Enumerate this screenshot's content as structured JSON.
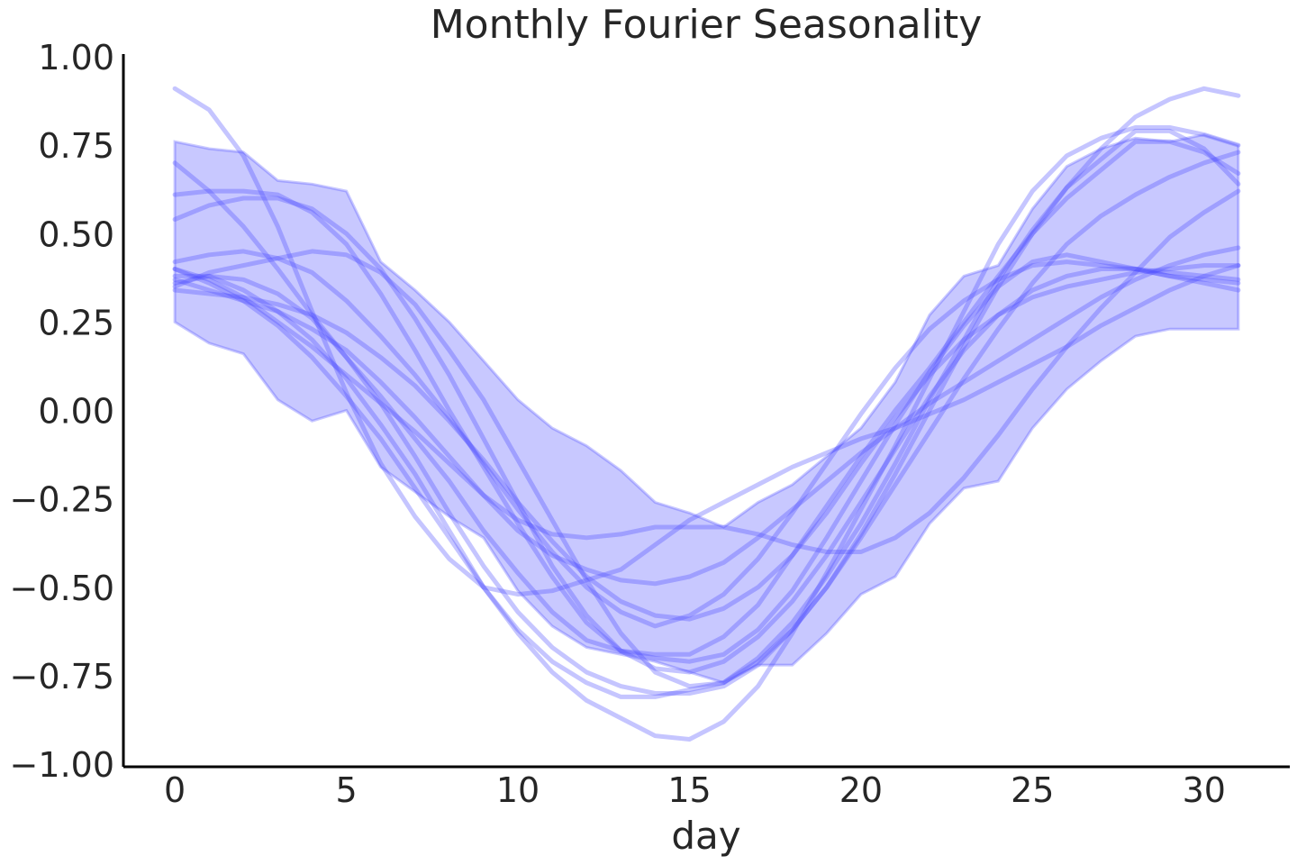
{
  "chart_data": {
    "type": "line",
    "title": "Monthly Fourier Seasonality",
    "xlabel": "day",
    "ylabel": "",
    "xlim": [
      -1.5,
      32.5
    ],
    "ylim": [
      -1.0,
      1.0
    ],
    "xticks": [
      0,
      5,
      10,
      15,
      20,
      25,
      30
    ],
    "yticks": [
      1.0,
      0.75,
      0.5,
      0.25,
      0.0,
      -0.25,
      -0.5,
      -0.75,
      -1.0
    ],
    "xtick_labels": [
      "0",
      "5",
      "10",
      "15",
      "20",
      "25",
      "30"
    ],
    "ytick_labels": [
      "1.00",
      "0.75",
      "0.50",
      "0.25",
      "0.00",
      "−0.25",
      "−0.50",
      "−0.75",
      "−1.00"
    ],
    "grid": false,
    "legend": "none",
    "color": "#4a4aff",
    "x": [
      0,
      1,
      2,
      3,
      4,
      5,
      6,
      7,
      8,
      9,
      10,
      11,
      12,
      13,
      14,
      15,
      16,
      17,
      18,
      19,
      20,
      21,
      22,
      23,
      24,
      25,
      26,
      27,
      28,
      29,
      30,
      31
    ],
    "band": {
      "upper": [
        0.76,
        0.74,
        0.73,
        0.65,
        0.64,
        0.62,
        0.42,
        0.34,
        0.25,
        0.14,
        0.03,
        -0.05,
        -0.1,
        -0.17,
        -0.26,
        -0.29,
        -0.33,
        -0.26,
        -0.21,
        -0.13,
        -0.05,
        0.08,
        0.27,
        0.38,
        0.41,
        0.57,
        0.69,
        0.74,
        0.77,
        0.76,
        0.78,
        0.75
      ],
      "lower": [
        0.25,
        0.19,
        0.16,
        0.03,
        -0.03,
        0.0,
        -0.16,
        -0.23,
        -0.3,
        -0.36,
        -0.51,
        -0.61,
        -0.67,
        -0.69,
        -0.71,
        -0.74,
        -0.77,
        -0.72,
        -0.72,
        -0.63,
        -0.52,
        -0.47,
        -0.32,
        -0.22,
        -0.2,
        -0.05,
        0.06,
        0.14,
        0.21,
        0.23,
        0.23,
        0.23
      ]
    },
    "series": [
      {
        "values": [
          0.91,
          0.85,
          0.72,
          0.52,
          0.28,
          0.05,
          -0.15,
          -0.3,
          -0.42,
          -0.5,
          -0.52,
          -0.51,
          -0.48,
          -0.45,
          -0.38,
          -0.31,
          -0.26,
          -0.21,
          -0.16,
          -0.12,
          -0.08,
          -0.05,
          -0.01,
          0.03,
          0.08,
          0.13,
          0.18,
          0.24,
          0.29,
          0.34,
          0.38,
          0.41
        ]
      },
      {
        "values": [
          0.7,
          0.62,
          0.52,
          0.4,
          0.27,
          0.15,
          0.04,
          -0.08,
          -0.2,
          -0.34,
          -0.46,
          -0.57,
          -0.65,
          -0.68,
          -0.69,
          -0.69,
          -0.64,
          -0.55,
          -0.41,
          -0.27,
          -0.13,
          0.0,
          0.12,
          0.25,
          0.38,
          0.5,
          0.6,
          0.68,
          0.76,
          0.76,
          0.73,
          0.67
        ]
      },
      {
        "values": [
          0.42,
          0.44,
          0.45,
          0.43,
          0.39,
          0.31,
          0.21,
          0.1,
          -0.02,
          -0.15,
          -0.28,
          -0.4,
          -0.5,
          -0.57,
          -0.61,
          -0.58,
          -0.52,
          -0.42,
          -0.29,
          -0.15,
          -0.01,
          0.12,
          0.23,
          0.31,
          0.37,
          0.41,
          0.42,
          0.41,
          0.4,
          0.38,
          0.37,
          0.36
        ]
      },
      {
        "values": [
          0.61,
          0.62,
          0.62,
          0.61,
          0.56,
          0.47,
          0.33,
          0.17,
          0.0,
          -0.16,
          -0.32,
          -0.47,
          -0.6,
          -0.68,
          -0.7,
          -0.71,
          -0.69,
          -0.62,
          -0.51,
          -0.36,
          -0.2,
          -0.04,
          0.11,
          0.24,
          0.35,
          0.42,
          0.44,
          0.42,
          0.4,
          0.38,
          0.36,
          0.34
        ]
      },
      {
        "values": [
          0.54,
          0.58,
          0.6,
          0.6,
          0.57,
          0.5,
          0.4,
          0.26,
          0.1,
          -0.08,
          -0.26,
          -0.44,
          -0.58,
          -0.68,
          -0.73,
          -0.74,
          -0.71,
          -0.64,
          -0.54,
          -0.41,
          -0.26,
          -0.11,
          0.04,
          0.17,
          0.27,
          0.34,
          0.38,
          0.4,
          0.4,
          0.39,
          0.38,
          0.37
        ]
      },
      {
        "values": [
          0.38,
          0.38,
          0.34,
          0.28,
          0.2,
          0.09,
          -0.04,
          -0.18,
          -0.34,
          -0.5,
          -0.62,
          -0.71,
          -0.77,
          -0.81,
          -0.81,
          -0.79,
          -0.77,
          -0.7,
          -0.6,
          -0.47,
          -0.32,
          -0.15,
          0.03,
          0.2,
          0.37,
          0.51,
          0.63,
          0.71,
          0.79,
          0.79,
          0.74,
          0.64
        ]
      },
      {
        "values": [
          0.35,
          0.39,
          0.41,
          0.43,
          0.45,
          0.44,
          0.39,
          0.3,
          0.17,
          0.03,
          -0.14,
          -0.31,
          -0.48,
          -0.63,
          -0.74,
          -0.78,
          -0.77,
          -0.71,
          -0.62,
          -0.5,
          -0.36,
          -0.21,
          -0.06,
          0.09,
          0.23,
          0.36,
          0.47,
          0.55,
          0.61,
          0.66,
          0.7,
          0.73
        ]
      },
      {
        "values": [
          0.37,
          0.34,
          0.31,
          0.28,
          0.23,
          0.17,
          0.08,
          -0.02,
          -0.13,
          -0.24,
          -0.34,
          -0.41,
          -0.45,
          -0.48,
          -0.49,
          -0.47,
          -0.43,
          -0.36,
          -0.28,
          -0.2,
          -0.12,
          -0.05,
          0.02,
          0.08,
          0.14,
          0.2,
          0.26,
          0.32,
          0.37,
          0.41,
          0.44,
          0.46
        ]
      },
      {
        "values": [
          0.4,
          0.37,
          0.32,
          0.25,
          0.18,
          0.1,
          0.02,
          -0.06,
          -0.15,
          -0.24,
          -0.31,
          -0.35,
          -0.36,
          -0.35,
          -0.33,
          -0.33,
          -0.33,
          -0.35,
          -0.38,
          -0.4,
          -0.4,
          -0.36,
          -0.29,
          -0.19,
          -0.07,
          0.06,
          0.18,
          0.29,
          0.39,
          0.49,
          0.56,
          0.62
        ]
      },
      {
        "values": [
          0.4,
          0.36,
          0.31,
          0.24,
          0.15,
          0.04,
          -0.08,
          -0.22,
          -0.36,
          -0.5,
          -0.63,
          -0.74,
          -0.82,
          -0.87,
          -0.92,
          -0.93,
          -0.88,
          -0.78,
          -0.63,
          -0.46,
          -0.28,
          -0.1,
          0.09,
          0.28,
          0.47,
          0.62,
          0.72,
          0.77,
          0.8,
          0.8,
          0.78,
          0.75
        ]
      },
      {
        "values": [
          0.34,
          0.33,
          0.32,
          0.3,
          0.27,
          0.22,
          0.15,
          0.07,
          -0.03,
          -0.14,
          -0.26,
          -0.37,
          -0.47,
          -0.54,
          -0.58,
          -0.59,
          -0.56,
          -0.5,
          -0.41,
          -0.29,
          -0.15,
          -0.02,
          0.1,
          0.2,
          0.27,
          0.32,
          0.35,
          0.37,
          0.39,
          0.4,
          0.41,
          0.41
        ]
      },
      {
        "values": [
          0.36,
          0.38,
          0.37,
          0.33,
          0.26,
          0.15,
          0.02,
          -0.13,
          -0.29,
          -0.44,
          -0.57,
          -0.67,
          -0.74,
          -0.78,
          -0.8,
          -0.8,
          -0.78,
          -0.72,
          -0.62,
          -0.5,
          -0.35,
          -0.18,
          0.0,
          0.18,
          0.35,
          0.5,
          0.63,
          0.74,
          0.83,
          0.88,
          0.91,
          0.89
        ]
      }
    ]
  }
}
